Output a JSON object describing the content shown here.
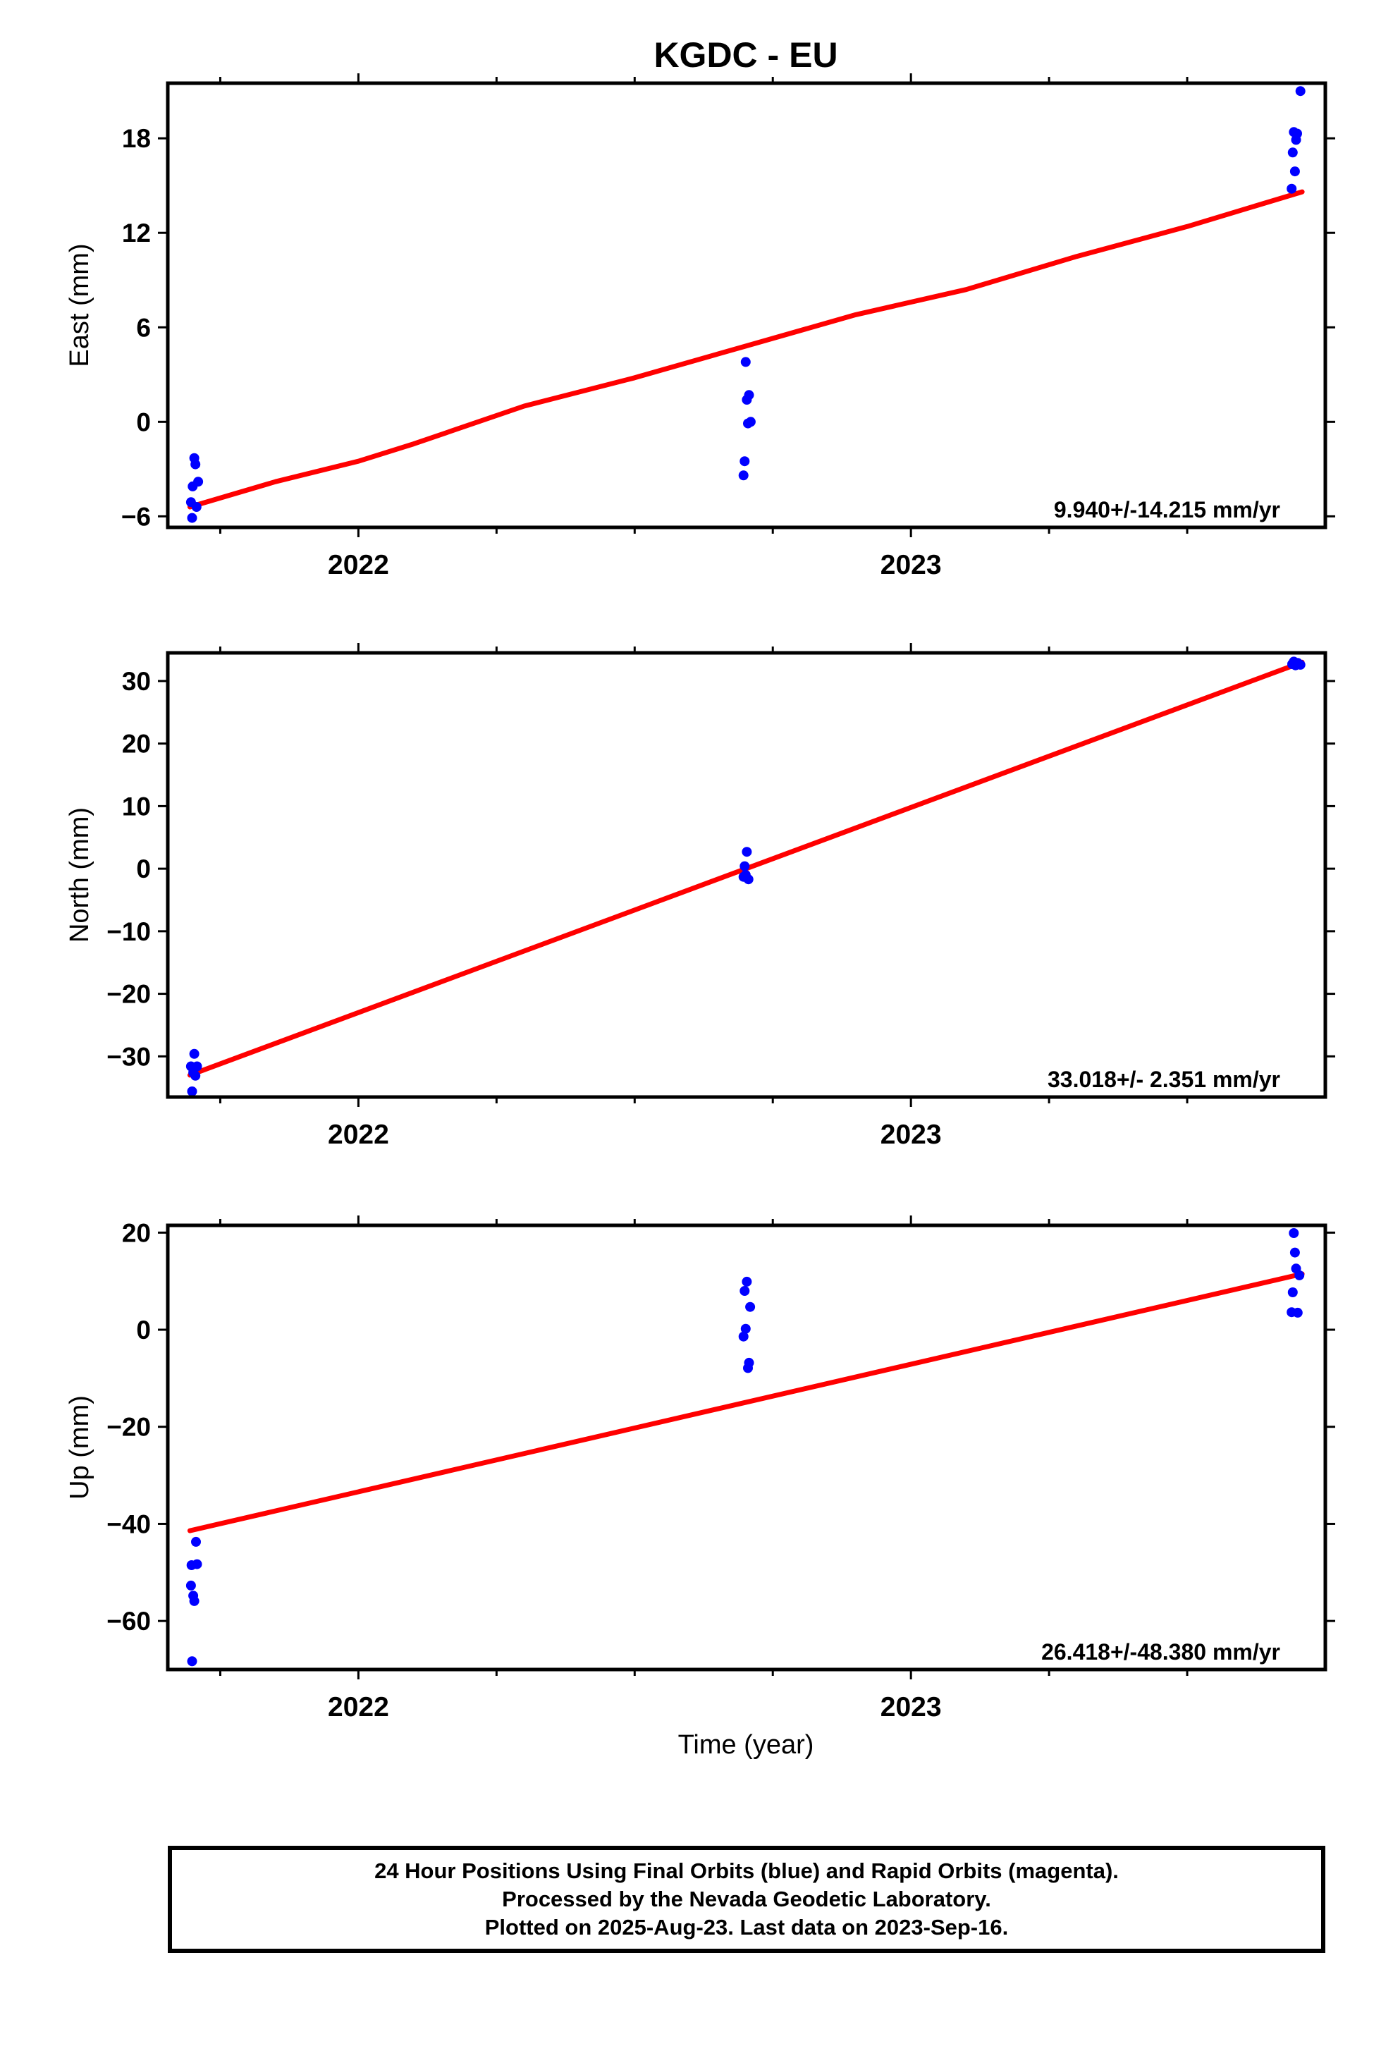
{
  "title": "KGDC - EU",
  "colors": {
    "points": "#0000ff",
    "fit": "#ff0000",
    "axes": "#000000"
  },
  "footer": {
    "line1": "24 Hour Positions Using Final Orbits (blue) and Rapid Orbits (magenta).",
    "line2": "Processed by the Nevada Geodetic Laboratory.",
    "line3": "Plotted on 2025-Aug-23. Last data on 2023-Sep-16."
  },
  "chart_data": [
    {
      "type": "scatter",
      "ylabel": "East (mm)",
      "xlabel": "",
      "xlim": [
        2021.655,
        2023.75
      ],
      "ylim": [
        -6.7,
        21.5
      ],
      "yticks": [
        -6,
        0,
        6,
        12,
        18
      ],
      "ytick_labels": [
        "−6",
        "0",
        "6",
        "12",
        "18"
      ],
      "xticks_major": [
        2022,
        2023
      ],
      "xtick_labels": [
        "2022",
        "2023"
      ],
      "xticks_minor": [
        2021.75,
        2022.25,
        2022.5,
        2022.75,
        2023.25,
        2023.5
      ],
      "rate_label": "9.940+/-14.215 mm/yr",
      "points": [
        {
          "x": 2021.697,
          "y": -5.1
        },
        {
          "x": 2021.699,
          "y": -6.1
        },
        {
          "x": 2021.7,
          "y": -4.1
        },
        {
          "x": 2021.703,
          "y": -2.3
        },
        {
          "x": 2021.705,
          "y": -2.7
        },
        {
          "x": 2021.707,
          "y": -5.4
        },
        {
          "x": 2021.71,
          "y": -3.8
        },
        {
          "x": 2022.697,
          "y": -3.4
        },
        {
          "x": 2022.699,
          "y": -2.5
        },
        {
          "x": 2022.701,
          "y": 3.8
        },
        {
          "x": 2022.703,
          "y": 1.4
        },
        {
          "x": 2022.705,
          "y": -0.1
        },
        {
          "x": 2022.707,
          "y": 1.7
        },
        {
          "x": 2022.71,
          "y": 0.0
        },
        {
          "x": 2023.689,
          "y": 14.8
        },
        {
          "x": 2023.691,
          "y": 17.1
        },
        {
          "x": 2023.693,
          "y": 18.4
        },
        {
          "x": 2023.695,
          "y": 15.9
        },
        {
          "x": 2023.697,
          "y": 17.9
        },
        {
          "x": 2023.699,
          "y": 18.3
        },
        {
          "x": 2023.705,
          "y": 21.0
        }
      ],
      "fit": [
        {
          "x": 2021.695,
          "y": -5.4
        },
        {
          "x": 2021.85,
          "y": -3.8
        },
        {
          "x": 2022.0,
          "y": -2.5
        },
        {
          "x": 2022.1,
          "y": -1.4
        },
        {
          "x": 2022.3,
          "y": 1.0
        },
        {
          "x": 2022.5,
          "y": 2.8
        },
        {
          "x": 2022.7,
          "y": 4.8
        },
        {
          "x": 2022.9,
          "y": 6.8
        },
        {
          "x": 2023.1,
          "y": 8.4
        },
        {
          "x": 2023.3,
          "y": 10.5
        },
        {
          "x": 2023.5,
          "y": 12.4
        },
        {
          "x": 2023.708,
          "y": 14.6
        }
      ]
    },
    {
      "type": "scatter",
      "ylabel": "North (mm)",
      "xlabel": "",
      "xlim": [
        2021.655,
        2023.75
      ],
      "ylim": [
        -36.5,
        34.5
      ],
      "yticks": [
        -30,
        -20,
        -10,
        0,
        10,
        20,
        30
      ],
      "ytick_labels": [
        "−30",
        "−20",
        "−10",
        "0",
        "10",
        "20",
        "30"
      ],
      "xticks_major": [
        2022,
        2023
      ],
      "xtick_labels": [
        "2022",
        "2023"
      ],
      "xticks_minor": [
        2021.75,
        2022.25,
        2022.5,
        2022.75,
        2023.25,
        2023.5
      ],
      "rate_label": "33.018+/- 2.351 mm/yr",
      "points": [
        {
          "x": 2021.697,
          "y": -31.6
        },
        {
          "x": 2021.699,
          "y": -35.6
        },
        {
          "x": 2021.701,
          "y": -32.6
        },
        {
          "x": 2021.703,
          "y": -29.6
        },
        {
          "x": 2021.705,
          "y": -33.1
        },
        {
          "x": 2021.708,
          "y": -31.6
        },
        {
          "x": 2022.697,
          "y": -1.3
        },
        {
          "x": 2022.699,
          "y": 0.4
        },
        {
          "x": 2022.701,
          "y": -1.0
        },
        {
          "x": 2022.703,
          "y": 2.7
        },
        {
          "x": 2022.706,
          "y": -1.7
        },
        {
          "x": 2023.69,
          "y": 32.7
        },
        {
          "x": 2023.693,
          "y": 33.1
        },
        {
          "x": 2023.696,
          "y": 32.5
        },
        {
          "x": 2023.7,
          "y": 32.9
        },
        {
          "x": 2023.705,
          "y": 32.6
        }
      ],
      "fit": [
        {
          "x": 2021.695,
          "y": -33.0
        },
        {
          "x": 2023.708,
          "y": 33.0
        }
      ]
    },
    {
      "type": "scatter",
      "ylabel": "Up (mm)",
      "xlabel": "Time (year)",
      "xlim": [
        2021.655,
        2023.75
      ],
      "ylim": [
        -70.0,
        21.5
      ],
      "yticks": [
        -60,
        -40,
        -20,
        0,
        20
      ],
      "ytick_labels": [
        "−60",
        "−40",
        "−20",
        "0",
        "20"
      ],
      "xticks_major": [
        2022,
        2023
      ],
      "xtick_labels": [
        "2022",
        "2023"
      ],
      "xticks_minor": [
        2021.75,
        2022.25,
        2022.5,
        2022.75,
        2023.25,
        2023.5
      ],
      "rate_label": "26.418+/-48.380 mm/yr",
      "points": [
        {
          "x": 2021.697,
          "y": -52.7
        },
        {
          "x": 2021.698,
          "y": -48.5
        },
        {
          "x": 2021.699,
          "y": -68.3
        },
        {
          "x": 2021.701,
          "y": -54.8
        },
        {
          "x": 2021.703,
          "y": -55.9
        },
        {
          "x": 2021.706,
          "y": -43.7
        },
        {
          "x": 2021.708,
          "y": -48.3
        },
        {
          "x": 2022.697,
          "y": -1.4
        },
        {
          "x": 2022.699,
          "y": 8.0
        },
        {
          "x": 2022.701,
          "y": 0.2
        },
        {
          "x": 2022.703,
          "y": 9.9
        },
        {
          "x": 2022.705,
          "y": -7.9
        },
        {
          "x": 2022.707,
          "y": -6.8
        },
        {
          "x": 2022.709,
          "y": 4.7
        },
        {
          "x": 2023.689,
          "y": 3.6
        },
        {
          "x": 2023.691,
          "y": 7.7
        },
        {
          "x": 2023.693,
          "y": 19.9
        },
        {
          "x": 2023.695,
          "y": 15.9
        },
        {
          "x": 2023.697,
          "y": 12.6
        },
        {
          "x": 2023.7,
          "y": 3.5
        },
        {
          "x": 2023.703,
          "y": 11.2
        }
      ],
      "fit": [
        {
          "x": 2021.695,
          "y": -41.4
        },
        {
          "x": 2023.708,
          "y": 11.5
        }
      ]
    }
  ]
}
